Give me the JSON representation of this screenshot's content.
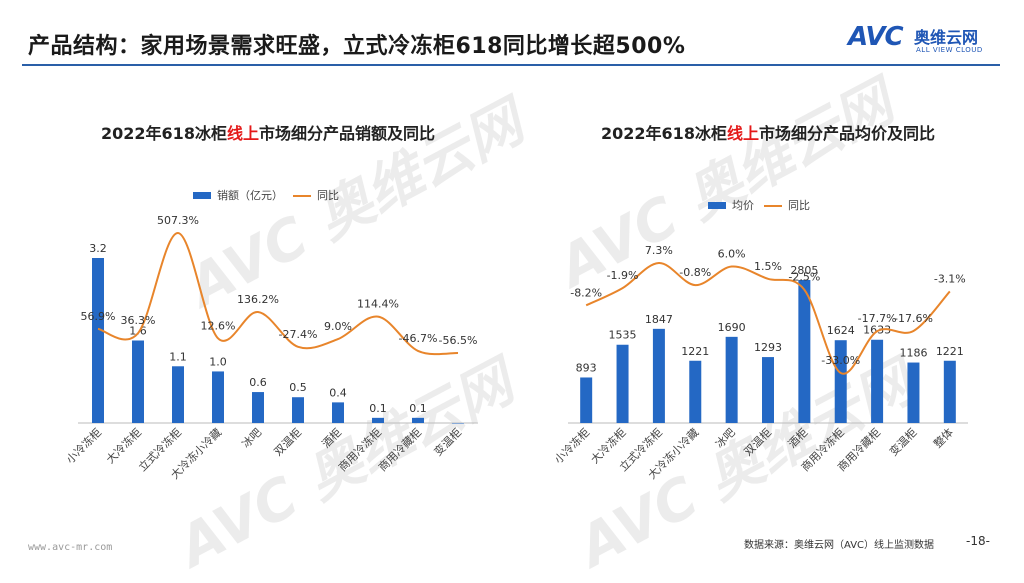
{
  "header": {
    "title": "产品结构：家用场景需求旺盛，立式冷冻柜618同比增长超500%"
  },
  "logo": {
    "mark": "AVC",
    "cn": "奥维云网",
    "en": "ALL VIEW CLOUD"
  },
  "footer": {
    "url": "www.avc-mr.com",
    "source": "数据来源：奥维云网（AVC）线上监测数据",
    "page": "-18-"
  },
  "colors": {
    "bar": "#2468c4",
    "line": "#e8852b",
    "title_highlight": "#e41a1a",
    "rule": "#2a5fa8"
  },
  "chart_data": [
    {
      "type": "bar",
      "title_parts": [
        "2022年618冰柜",
        "线上",
        "市场细分产品销额及同比"
      ],
      "categories": [
        "小冷冻柜",
        "大冷冻柜",
        "立式冷冻柜",
        "大冷冻小冷藏",
        "冰吧",
        "双温柜",
        "酒柜",
        "商用冷冻柜",
        "商用冷藏柜",
        "变温柜"
      ],
      "series": [
        {
          "name": "销额（亿元）",
          "kind": "bar",
          "values": [
            3.2,
            1.6,
            1.1,
            1.0,
            0.6,
            0.5,
            0.4,
            0.1,
            0.1,
            0.0
          ],
          "labels": [
            "3.2",
            "1.6",
            "1.1",
            "1.0",
            "0.6",
            "0.5",
            "0.4",
            "0.1",
            "0.1",
            ""
          ]
        },
        {
          "name": "同比",
          "kind": "line",
          "values": [
            56.9,
            36.3,
            507.3,
            12.6,
            136.2,
            -27.4,
            9.0,
            114.4,
            -46.7,
            -56.5
          ],
          "labels": [
            "56.9%",
            "36.3%",
            "507.3%",
            "12.6%",
            "136.2%",
            "-27.4%",
            "9.0%",
            "114.4%",
            "-46.7%",
            "-56.5%"
          ]
        }
      ],
      "legend_position": "top",
      "grid": false
    },
    {
      "type": "bar",
      "title_parts": [
        "2022年618冰柜",
        "线上",
        "市场细分产品均价及同比"
      ],
      "categories": [
        "小冷冻柜",
        "大冷冻柜",
        "立式冷冻柜",
        "大冷冻小冷藏",
        "冰吧",
        "双温柜",
        "酒柜",
        "商用冷冻柜",
        "商用冷藏柜",
        "变温柜",
        "整体"
      ],
      "series": [
        {
          "name": "均价",
          "kind": "bar",
          "values": [
            893,
            1535,
            1847,
            1221,
            1690,
            1293,
            2805,
            1624,
            1633,
            1186,
            1221
          ],
          "labels": [
            "893",
            "1535",
            "1847",
            "1221",
            "1690",
            "1293",
            "2805",
            "1624",
            "1633",
            "1186",
            "1221"
          ]
        },
        {
          "name": "同比",
          "kind": "line",
          "values": [
            -8.2,
            -1.9,
            7.3,
            -0.8,
            6.0,
            1.5,
            -2.5,
            -33.0,
            -17.7,
            -17.6,
            -3.1
          ],
          "labels": [
            "-8.2%",
            "-1.9%",
            "7.3%",
            "-0.8%",
            "6.0%",
            "1.5%",
            "-2.5%",
            "-33.0%",
            "-17.7%",
            "-17.6%",
            "-3.1%"
          ]
        }
      ],
      "legend_position": "top",
      "grid": false
    }
  ]
}
